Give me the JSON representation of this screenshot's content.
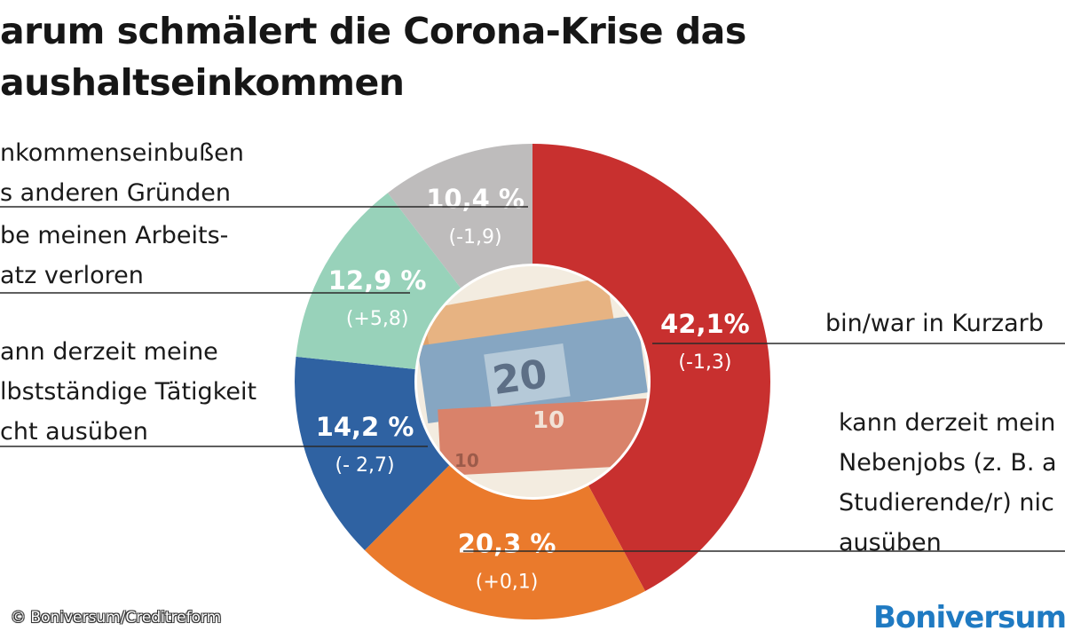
{
  "title": {
    "line1": "arum schmälert die Corona-Krise das",
    "line2": "aushaltseinkommen"
  },
  "chart_data": {
    "type": "pie",
    "title": "arum schmälert die Corona-Krise das aushaltseinkommen",
    "unit": "%",
    "slices": [
      {
        "key": "kurzarbeit",
        "value": 42.1,
        "change": -1.3,
        "value_label": "42,1%",
        "change_label": "(-1,3)",
        "color": "#c8302f",
        "label_lines": [
          "bin/war in Kurzarb"
        ]
      },
      {
        "key": "nebenjobs",
        "value": 20.3,
        "change": 0.1,
        "value_label": "20,3 %",
        "change_label": "(+0,1)",
        "color": "#ea7a2c",
        "label_lines": [
          "kann derzeit mein",
          "Nebenjobs (z. B. a",
          "Studierende/r) nic",
          "ausüben"
        ]
      },
      {
        "key": "selbststaendig",
        "value": 14.2,
        "change": -2.7,
        "value_label": "14,2 %",
        "change_label": "(- 2,7)",
        "color": "#2f62a2",
        "label_lines": [
          "ann derzeit meine",
          "lbstständige Tätigkeit",
          "cht ausüben"
        ]
      },
      {
        "key": "arbeitsplatz",
        "value": 12.9,
        "change": 5.8,
        "value_label": "12,9 %",
        "change_label": "(+5,8)",
        "color": "#98d2ba",
        "label_lines": [
          "be meinen Arbeits-",
          "atz verloren"
        ]
      },
      {
        "key": "andere",
        "value": 10.4,
        "change": -1.9,
        "value_label": "10,4 %",
        "change_label": "(-1,9)",
        "color": "#bebcbc",
        "label_lines": [
          "nkommenseinbußen",
          "s anderen Gründen"
        ]
      }
    ]
  },
  "footer": {
    "copyright": "© Boniversum/Creditreform",
    "brand": "Boniversum"
  }
}
